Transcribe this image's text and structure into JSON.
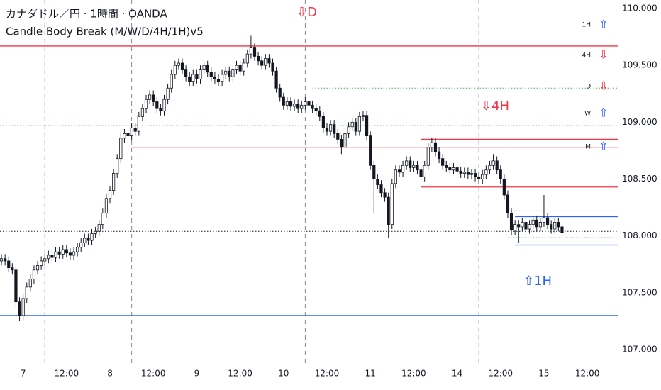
{
  "chart_data": {
    "type": "candlestick",
    "title": "カナダドル／円 · 1時間 · OANDA",
    "subtitle": "Candle Body Break (M/W/D/4H/1H)v5",
    "x": [
      0,
      1,
      2,
      3,
      4,
      5,
      6,
      7,
      8,
      9,
      10,
      11,
      12,
      13,
      14,
      15,
      16,
      17,
      18,
      19,
      20,
      21,
      22,
      23,
      24,
      25,
      26,
      27,
      28,
      29,
      30,
      31,
      32,
      33,
      34,
      35,
      36,
      37,
      38,
      39,
      40,
      41,
      42,
      43,
      44,
      45,
      46,
      47,
      48,
      49,
      50,
      51,
      52,
      53,
      54,
      55,
      56,
      57,
      58,
      59,
      60,
      61,
      62,
      63,
      64,
      65,
      66,
      67,
      68,
      69,
      70,
      71,
      72,
      73,
      74,
      75,
      76,
      77,
      78,
      79,
      80,
      81,
      82,
      83,
      84,
      85,
      86,
      87,
      88,
      89,
      90,
      91,
      92,
      93,
      94,
      95,
      96,
      97,
      98,
      99,
      100,
      101,
      102,
      103,
      104,
      105,
      106,
      107,
      108,
      109,
      110,
      111,
      112,
      113,
      114,
      115,
      116,
      117,
      118,
      119,
      120,
      121,
      122,
      123,
      124,
      125,
      126,
      127,
      128,
      129,
      130,
      131,
      132,
      133,
      134,
      135,
      136,
      137,
      138,
      139,
      140,
      141,
      142,
      143,
      144,
      145,
      146,
      147,
      148,
      149,
      150,
      151,
      152,
      153,
      154,
      155
    ],
    "open": [
      107.78,
      107.8,
      107.78,
      107.72,
      107.7,
      107.42,
      107.3,
      107.45,
      107.55,
      107.62,
      107.7,
      107.74,
      107.78,
      107.8,
      107.83,
      107.81,
      107.86,
      107.84,
      107.88,
      107.85,
      107.83,
      107.86,
      107.9,
      107.94,
      107.98,
      107.96,
      108.02,
      108.04,
      108.1,
      108.2,
      108.33,
      108.4,
      108.55,
      108.68,
      108.86,
      108.9,
      108.88,
      108.95,
      108.92,
      109.05,
      109.12,
      109.2,
      109.24,
      109.18,
      109.12,
      109.1,
      109.2,
      109.3,
      109.42,
      109.5,
      109.52,
      109.46,
      109.4,
      109.36,
      109.42,
      109.38,
      109.46,
      109.5,
      109.44,
      109.4,
      109.38,
      109.36,
      109.42,
      109.45,
      109.4,
      109.46,
      109.5,
      109.45,
      109.52,
      109.6,
      109.66,
      109.58,
      109.54,
      109.5,
      109.56,
      109.52,
      109.45,
      109.3,
      109.22,
      109.15,
      109.18,
      109.14,
      109.16,
      109.12,
      109.15,
      109.18,
      109.15,
      109.12,
      109.1,
      109.05,
      108.95,
      108.92,
      108.98,
      108.9,
      108.85,
      108.78,
      108.9,
      108.96,
      109.0,
      108.92,
      109.05,
      109.06,
      108.88,
      108.62,
      108.5,
      108.45,
      108.38,
      108.34,
      108.1,
      108.46,
      108.58,
      108.56,
      108.62,
      108.66,
      108.6,
      108.62,
      108.58,
      108.52,
      108.62,
      108.78,
      108.82,
      108.74,
      108.68,
      108.62,
      108.6,
      108.58,
      108.6,
      108.57,
      108.55,
      108.56,
      108.54,
      108.55,
      108.52,
      108.5,
      108.54,
      108.58,
      108.62,
      108.66,
      108.58,
      108.5,
      108.36,
      108.2,
      108.05,
      108.1,
      108.08,
      108.12,
      108.06,
      108.1,
      108.14,
      108.08,
      108.12,
      108.16,
      108.1,
      108.06,
      108.12,
      108.08
    ],
    "high": [
      107.84,
      107.84,
      107.82,
      107.76,
      107.74,
      107.46,
      107.49,
      107.59,
      107.66,
      107.74,
      107.78,
      107.82,
      107.84,
      107.87,
      107.87,
      107.9,
      107.9,
      107.92,
      107.92,
      107.89,
      107.9,
      107.94,
      107.98,
      108.02,
      108.02,
      108.06,
      108.08,
      108.14,
      108.24,
      108.37,
      108.44,
      108.59,
      108.72,
      108.9,
      108.94,
      108.94,
      108.99,
      108.99,
      109.09,
      109.16,
      109.24,
      109.28,
      109.28,
      109.22,
      109.16,
      109.24,
      109.34,
      109.46,
      109.54,
      109.56,
      109.56,
      109.5,
      109.44,
      109.46,
      109.46,
      109.5,
      109.54,
      109.54,
      109.48,
      109.44,
      109.42,
      109.46,
      109.49,
      109.49,
      109.5,
      109.54,
      109.54,
      109.56,
      109.64,
      109.76,
      109.7,
      109.62,
      109.58,
      109.6,
      109.6,
      109.56,
      109.49,
      109.34,
      109.26,
      109.22,
      109.22,
      109.2,
      109.2,
      109.19,
      109.22,
      109.22,
      109.19,
      109.16,
      109.14,
      109.09,
      108.99,
      109.02,
      109.02,
      108.94,
      108.89,
      108.94,
      109.0,
      109.04,
      109.04,
      109.09,
      109.1,
      109.1,
      108.92,
      108.66,
      108.54,
      108.49,
      108.42,
      108.38,
      108.5,
      108.62,
      108.62,
      108.66,
      108.7,
      108.7,
      108.66,
      108.66,
      108.62,
      108.66,
      108.82,
      108.86,
      108.86,
      108.78,
      108.72,
      108.66,
      108.64,
      108.64,
      108.64,
      108.61,
      108.6,
      108.6,
      108.59,
      108.59,
      108.56,
      108.58,
      108.62,
      108.66,
      108.72,
      108.7,
      108.62,
      108.54,
      108.4,
      108.24,
      108.14,
      108.14,
      108.16,
      108.16,
      108.14,
      108.18,
      108.18,
      108.16,
      108.36,
      108.2,
      108.14,
      108.16,
      108.16,
      108.12
    ],
    "low": [
      107.74,
      107.74,
      107.68,
      107.66,
      107.38,
      107.25,
      107.26,
      107.41,
      107.51,
      107.58,
      107.66,
      107.7,
      107.74,
      107.76,
      107.77,
      107.77,
      107.8,
      107.8,
      107.81,
      107.79,
      107.79,
      107.82,
      107.86,
      107.9,
      107.92,
      107.92,
      107.98,
      108.0,
      108.06,
      108.16,
      108.29,
      108.36,
      108.51,
      108.64,
      108.82,
      108.84,
      108.84,
      108.88,
      108.88,
      109.01,
      109.08,
      109.16,
      109.14,
      109.08,
      109.06,
      109.06,
      109.16,
      109.26,
      109.38,
      109.46,
      109.42,
      109.36,
      109.32,
      109.32,
      109.34,
      109.34,
      109.42,
      109.4,
      109.36,
      109.34,
      109.32,
      109.32,
      109.38,
      109.36,
      109.36,
      109.42,
      109.41,
      109.41,
      109.48,
      109.56,
      109.54,
      109.5,
      109.46,
      109.46,
      109.48,
      109.41,
      109.26,
      109.18,
      109.11,
      109.11,
      109.1,
      109.1,
      109.08,
      109.08,
      109.11,
      109.11,
      109.08,
      109.06,
      109.01,
      108.91,
      108.88,
      108.88,
      108.86,
      108.81,
      108.72,
      108.74,
      108.86,
      108.92,
      108.88,
      108.88,
      109.01,
      108.84,
      108.58,
      108.2,
      108.41,
      108.34,
      108.3,
      107.98,
      108.06,
      108.42,
      108.52,
      108.52,
      108.58,
      108.56,
      108.56,
      108.54,
      108.48,
      108.48,
      108.58,
      108.74,
      108.7,
      108.64,
      108.58,
      108.56,
      108.54,
      108.54,
      108.53,
      108.51,
      108.51,
      108.5,
      108.5,
      108.48,
      108.46,
      108.46,
      108.5,
      108.54,
      108.58,
      108.54,
      108.46,
      108.32,
      108.16,
      108.01,
      108.01,
      107.94,
      108.04,
      108.02,
      108.02,
      108.06,
      108.04,
      108.04,
      108.08,
      108.06,
      108.02,
      108.02,
      108.04,
      107.99
    ],
    "close": [
      107.8,
      107.78,
      107.72,
      107.7,
      107.42,
      107.3,
      107.45,
      107.55,
      107.62,
      107.7,
      107.74,
      107.78,
      107.8,
      107.83,
      107.81,
      107.86,
      107.84,
      107.88,
      107.85,
      107.83,
      107.86,
      107.9,
      107.94,
      107.98,
      107.96,
      108.02,
      108.04,
      108.1,
      108.2,
      108.33,
      108.4,
      108.55,
      108.68,
      108.86,
      108.9,
      108.88,
      108.95,
      108.92,
      109.05,
      109.12,
      109.2,
      109.24,
      109.18,
      109.12,
      109.1,
      109.2,
      109.3,
      109.42,
      109.5,
      109.52,
      109.46,
      109.4,
      109.36,
      109.42,
      109.38,
      109.46,
      109.5,
      109.44,
      109.4,
      109.38,
      109.36,
      109.42,
      109.45,
      109.4,
      109.46,
      109.5,
      109.45,
      109.52,
      109.6,
      109.66,
      109.58,
      109.54,
      109.5,
      109.56,
      109.52,
      109.45,
      109.3,
      109.22,
      109.15,
      109.18,
      109.14,
      109.16,
      109.12,
      109.15,
      109.18,
      109.15,
      109.12,
      109.1,
      109.05,
      108.95,
      108.92,
      108.98,
      108.9,
      108.85,
      108.78,
      108.9,
      108.96,
      109.0,
      108.92,
      109.05,
      109.06,
      108.88,
      108.62,
      108.5,
      108.45,
      108.38,
      108.34,
      108.1,
      108.46,
      108.58,
      108.56,
      108.62,
      108.66,
      108.6,
      108.62,
      108.58,
      108.52,
      108.62,
      108.78,
      108.82,
      108.74,
      108.68,
      108.62,
      108.6,
      108.58,
      108.6,
      108.57,
      108.55,
      108.56,
      108.54,
      108.55,
      108.52,
      108.5,
      108.54,
      108.58,
      108.62,
      108.66,
      108.58,
      108.5,
      108.36,
      108.2,
      108.05,
      108.1,
      108.08,
      108.12,
      108.06,
      108.1,
      108.14,
      108.08,
      108.12,
      108.16,
      108.1,
      108.06,
      108.12,
      108.08,
      108.03
    ],
    "up_color": "#ffffff",
    "down_color": "#131722",
    "xlim": [
      -0.4,
      170.6
    ],
    "ylim": [
      106.863,
      110.075
    ],
    "xticks": [
      {
        "value": 6,
        "label": "7"
      },
      {
        "value": 18,
        "label": "12:00"
      },
      {
        "value": 30,
        "label": "8"
      },
      {
        "value": 42,
        "label": "12:00"
      },
      {
        "value": 54,
        "label": "9"
      },
      {
        "value": 66,
        "label": "12:00"
      },
      {
        "value": 78,
        "label": "10"
      },
      {
        "value": 90,
        "label": "12:00"
      },
      {
        "value": 102,
        "label": "11"
      },
      {
        "value": 114,
        "label": "12:00"
      },
      {
        "value": 126,
        "label": "14"
      },
      {
        "value": 138,
        "label": "12:00"
      },
      {
        "value": 150,
        "label": "15"
      },
      {
        "value": 162,
        "label": "12:00"
      }
    ],
    "yticks": [
      {
        "value": 110,
        "label": "110.000"
      },
      {
        "value": 109.5,
        "label": "109.500"
      },
      {
        "value": 109,
        "label": "109.000"
      },
      {
        "value": 108.5,
        "label": "108.500"
      },
      {
        "value": 108,
        "label": "108.000"
      },
      {
        "value": 107.5,
        "label": "107.500"
      },
      {
        "value": 107,
        "label": "107.000"
      }
    ],
    "period_lines": [
      12,
      36,
      84,
      132
    ],
    "levels": [
      {
        "value": 109.67,
        "color": "#f23645",
        "style": "solid"
      },
      {
        "value": 108.78,
        "from": 36,
        "color": "#f23645",
        "style": "solid"
      },
      {
        "value": 108.85,
        "from": 116,
        "color": "#f23645",
        "style": "solid"
      },
      {
        "value": 108.43,
        "from": 116,
        "color": "#f23645",
        "style": "solid"
      },
      {
        "value": 107.3,
        "color": "#2962ff",
        "style": "solid"
      },
      {
        "value": 108.17,
        "from": 142,
        "color": "#2962ff",
        "style": "solid"
      },
      {
        "value": 107.92,
        "from": 142,
        "color": "#2962ff",
        "style": "solid"
      },
      {
        "value": 108.97,
        "color": "#4caf50",
        "style": "dotted"
      },
      {
        "value": 109.3,
        "from": 86,
        "color": "#4caf50",
        "style": "dotted"
      },
      {
        "value": 108.22,
        "from": 140,
        "color": "#4caf50",
        "style": "dotted"
      },
      {
        "value": 107.985,
        "from": 140,
        "color": "#4caf50",
        "style": "dotted"
      },
      {
        "value": 108.04,
        "color": "#131722",
        "style": "dotted"
      }
    ],
    "annotations": [
      {
        "text": "⇩D",
        "color": "#f23645"
      },
      {
        "text": "⇩4H",
        "color": "#f23645"
      },
      {
        "text": "⇧1H",
        "color": "#2962ff"
      }
    ],
    "status": [
      {
        "label": "1H",
        "arrow": "⇧",
        "color": "#2962ff"
      },
      {
        "label": "4H",
        "arrow": "⇩",
        "color": "#f23645"
      },
      {
        "label": "D",
        "arrow": "⇩",
        "color": "#f23645"
      },
      {
        "label": "W",
        "arrow": "⇧",
        "color": "#2962ff"
      },
      {
        "label": "M",
        "arrow": "⇧",
        "color": "#2962ff"
      }
    ]
  }
}
